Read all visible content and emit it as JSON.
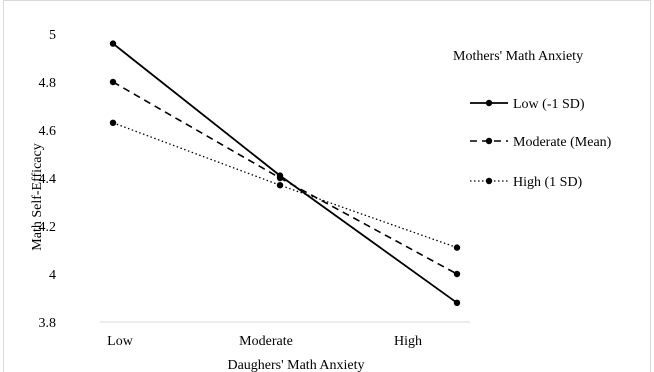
{
  "chart_data": {
    "type": "line",
    "title": "",
    "xlabel": "Daughers' Math Anxiety",
    "ylabel": "Math Self-Efficacy",
    "categories": [
      "Low",
      "Moderate",
      "High"
    ],
    "ylim": [
      3.8,
      5
    ],
    "yticks": [
      "3.8",
      "4",
      "4.2",
      "4.4",
      "4.6",
      "4.8",
      "5"
    ],
    "grid": false,
    "legend_title": "Mothers' Math Anxiety",
    "legend_position": "right",
    "series": [
      {
        "name": "Low (-1 SD)",
        "values": [
          4.96,
          4.41,
          3.88
        ],
        "dash": "solid",
        "color": "#000000"
      },
      {
        "name": "Moderate (Mean)",
        "values": [
          4.8,
          4.4,
          4.0
        ],
        "dash": "dashed",
        "color": "#000000"
      },
      {
        "name": "High (1 SD)",
        "values": [
          4.63,
          4.37,
          4.11
        ],
        "dash": "dotted",
        "color": "#000000"
      }
    ]
  }
}
